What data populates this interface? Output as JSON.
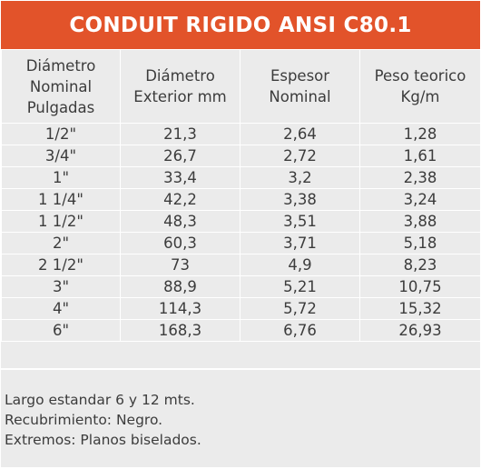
{
  "title": "CONDUIT RIGIDO ANSI C80.1",
  "colors": {
    "header_bg": "#e2532a",
    "header_text": "#ffffff",
    "body_bg": "#ebebeb",
    "grid": "#ffffff",
    "text": "#3c3c3c"
  },
  "table": {
    "headers": [
      [
        "Diámetro",
        "Nominal",
        "Pulgadas"
      ],
      [
        "Diámetro",
        "Exterior mm"
      ],
      [
        "Espesor",
        "Nominal"
      ],
      [
        "Peso teorico",
        "Kg/m"
      ]
    ],
    "rows": [
      [
        "1/2\"",
        "21,3",
        "2,64",
        "1,28"
      ],
      [
        "3/4\"",
        "26,7",
        "2,72",
        "1,61"
      ],
      [
        "1\"",
        "33,4",
        "3,2",
        "2,38"
      ],
      [
        "1 1/4\"",
        "42,2",
        "3,38",
        "3,24"
      ],
      [
        "1 1/2\"",
        "48,3",
        "3,51",
        "3,88"
      ],
      [
        "2\"",
        "60,3",
        "3,71",
        "5,18"
      ],
      [
        "2 1/2\"",
        "73",
        "4,9",
        "8,23"
      ],
      [
        "3\"",
        "88,9",
        "5,21",
        "10,75"
      ],
      [
        "4\"",
        "114,3",
        "5,72",
        "15,32"
      ],
      [
        "6\"",
        "168,3",
        "6,76",
        "26,93"
      ]
    ]
  },
  "notes": [
    "Largo estandar 6 y 12 mts.",
    "Recubrimiento: Negro.",
    "Extremos: Planos biselados."
  ]
}
